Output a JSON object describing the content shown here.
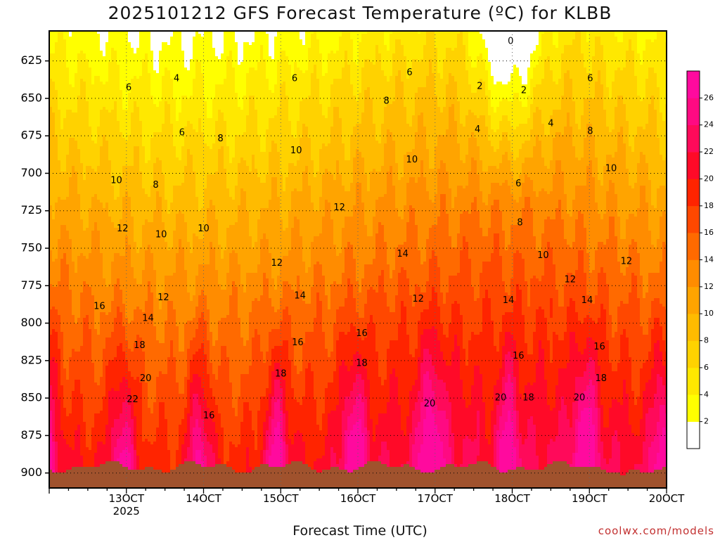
{
  "header": {
    "title": "2025101212 GFS Forecast Temperature (ºC) for KLBB"
  },
  "footer": {
    "credit": "coolwx.com/models"
  },
  "chart_data": {
    "type": "contour",
    "title": "2025101212 GFS Forecast Temperature (ºC) for KLBB",
    "xlabel": "Forecast Time (UTC)",
    "ylabel": "",
    "y_axis": "pressure (hPa), inverted",
    "ylim": [
      910,
      605
    ],
    "xlim_days": [
      "12OCT",
      "20OCT"
    ],
    "x_ticks": [
      {
        "label": "13OCT",
        "sublabel": "2025",
        "day": 13
      },
      {
        "label": "14OCT",
        "sublabel": "",
        "day": 14
      },
      {
        "label": "15OCT",
        "sublabel": "",
        "day": 15
      },
      {
        "label": "16OCT",
        "sublabel": "",
        "day": 16
      },
      {
        "label": "17OCT",
        "sublabel": "",
        "day": 17
      },
      {
        "label": "18OCT",
        "sublabel": "",
        "day": 18
      },
      {
        "label": "19OCT",
        "sublabel": "",
        "day": 19
      },
      {
        "label": "20OCT",
        "sublabel": "",
        "day": 20
      }
    ],
    "y_ticks": [
      625,
      650,
      675,
      700,
      725,
      750,
      775,
      800,
      825,
      850,
      875,
      900
    ],
    "grid": true,
    "colorbar": {
      "placement": "right",
      "levels": [
        2,
        4,
        6,
        8,
        10,
        12,
        14,
        16,
        18,
        20,
        22,
        24,
        26
      ],
      "colors": [
        "#ffffff",
        "#ffff00",
        "#ffe800",
        "#ffd200",
        "#ffbb00",
        "#ffa400",
        "#ff8c00",
        "#ff6a00",
        "#ff4800",
        "#ff2400",
        "#ff0a28",
        "#ff0a5a",
        "#ff0a82",
        "#ff0a9e"
      ]
    },
    "ground_color": "#a0522d",
    "freezing_line_color": "#b0106a",
    "contour_labels": [
      {
        "text": "0",
        "day": 17.98,
        "p": 612
      },
      {
        "text": "2",
        "day": 17.58,
        "p": 642
      },
      {
        "text": "2",
        "day": 18.15,
        "p": 645
      },
      {
        "text": "4",
        "day": 13.65,
        "p": 637
      },
      {
        "text": "4",
        "day": 17.55,
        "p": 671
      },
      {
        "text": "4",
        "day": 18.5,
        "p": 667
      },
      {
        "text": "6",
        "day": 13.03,
        "p": 643
      },
      {
        "text": "6",
        "day": 13.72,
        "p": 673
      },
      {
        "text": "6",
        "day": 15.18,
        "p": 637
      },
      {
        "text": "6",
        "day": 16.67,
        "p": 633
      },
      {
        "text": "6",
        "day": 18.08,
        "p": 707
      },
      {
        "text": "6",
        "day": 19.01,
        "p": 637
      },
      {
        "text": "8",
        "day": 14.22,
        "p": 677
      },
      {
        "text": "8",
        "day": 16.37,
        "p": 652
      },
      {
        "text": "8",
        "day": 13.38,
        "p": 708
      },
      {
        "text": "8",
        "day": 18.1,
        "p": 733
      },
      {
        "text": "8",
        "day": 19.01,
        "p": 672
      },
      {
        "text": "10",
        "day": 12.87,
        "p": 705
      },
      {
        "text": "10",
        "day": 13.45,
        "p": 741
      },
      {
        "text": "10",
        "day": 15.2,
        "p": 685
      },
      {
        "text": "10",
        "day": 14.0,
        "p": 737
      },
      {
        "text": "10",
        "day": 16.7,
        "p": 691
      },
      {
        "text": "10",
        "day": 18.4,
        "p": 755
      },
      {
        "text": "10",
        "day": 19.28,
        "p": 697
      },
      {
        "text": "12",
        "day": 12.95,
        "p": 737
      },
      {
        "text": "12",
        "day": 13.48,
        "p": 783
      },
      {
        "text": "12",
        "day": 14.95,
        "p": 760
      },
      {
        "text": "12",
        "day": 15.76,
        "p": 723
      },
      {
        "text": "12",
        "day": 16.78,
        "p": 784
      },
      {
        "text": "12",
        "day": 18.75,
        "p": 771
      },
      {
        "text": "12",
        "day": 19.48,
        "p": 759
      },
      {
        "text": "14",
        "day": 13.28,
        "p": 797
      },
      {
        "text": "14",
        "day": 15.25,
        "p": 782
      },
      {
        "text": "14",
        "day": 16.58,
        "p": 754
      },
      {
        "text": "14",
        "day": 17.95,
        "p": 785
      },
      {
        "text": "14",
        "day": 18.97,
        "p": 785
      },
      {
        "text": "16",
        "day": 12.65,
        "p": 789
      },
      {
        "text": "16",
        "day": 14.07,
        "p": 862
      },
      {
        "text": "16",
        "day": 15.22,
        "p": 813
      },
      {
        "text": "16",
        "day": 16.05,
        "p": 807
      },
      {
        "text": "16",
        "day": 18.08,
        "p": 822
      },
      {
        "text": "16",
        "day": 19.13,
        "p": 816
      },
      {
        "text": "18",
        "day": 13.17,
        "p": 815
      },
      {
        "text": "18",
        "day": 15.0,
        "p": 834
      },
      {
        "text": "18",
        "day": 16.05,
        "p": 827
      },
      {
        "text": "18",
        "day": 18.21,
        "p": 850
      },
      {
        "text": "18",
        "day": 19.15,
        "p": 837
      },
      {
        "text": "20",
        "day": 13.25,
        "p": 837
      },
      {
        "text": "20",
        "day": 16.93,
        "p": 854
      },
      {
        "text": "20",
        "day": 17.85,
        "p": 850
      },
      {
        "text": "20",
        "day": 18.87,
        "p": 850
      },
      {
        "text": "22",
        "day": 13.08,
        "p": 851
      }
    ]
  }
}
